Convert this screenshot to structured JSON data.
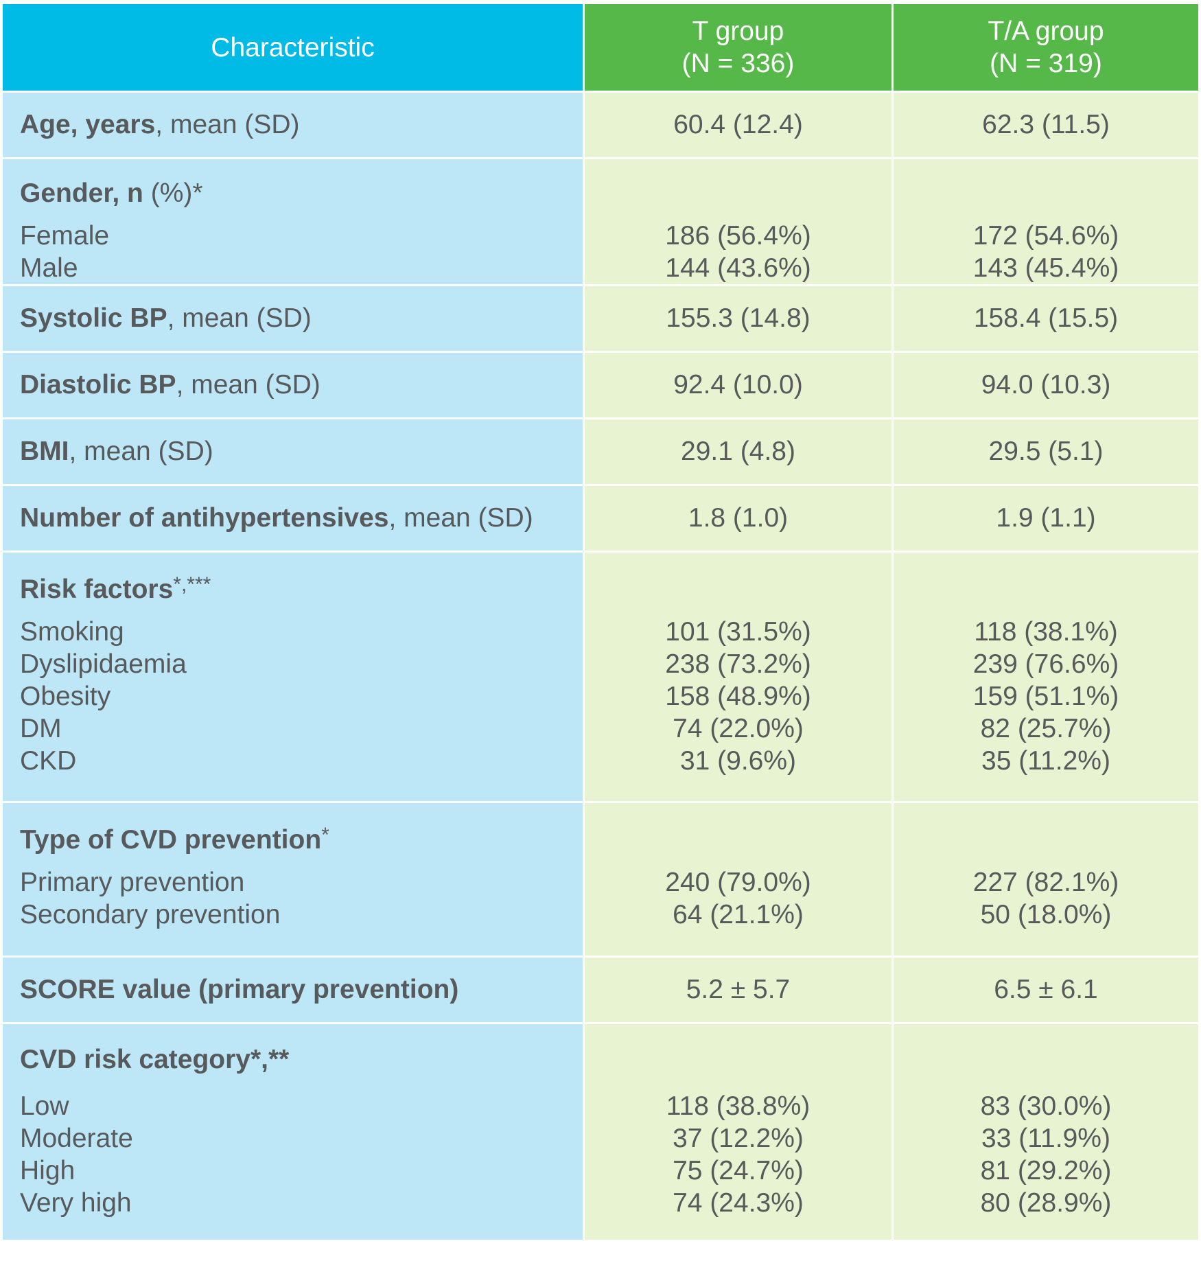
{
  "header": {
    "characteristic": "Characteristic",
    "t_group_line1": "T group",
    "t_group_line2": "(N = 336)",
    "ta_group_line1": "T/A group",
    "ta_group_line2": "(N = 319)"
  },
  "rows": {
    "age": {
      "label_bold": "Age, years",
      "label_rest": ", mean (SD)",
      "t": "60.4 (12.4)",
      "ta": "62.3 (11.5)"
    },
    "gender": {
      "title_bold": "Gender, n",
      "title_rest": " (%)*",
      "labels": [
        "Female",
        "Male"
      ],
      "t": [
        "186 (56.4%)",
        "144 (43.6%)"
      ],
      "ta": [
        "172 (54.6%)",
        "143 (45.4%)"
      ]
    },
    "systolic": {
      "label_bold": "Systolic BP",
      "label_rest": ", mean (SD)",
      "t": "155.3 (14.8)",
      "ta": "158.4 (15.5)"
    },
    "diastolic": {
      "label_bold": "Diastolic BP",
      "label_rest": ", mean (SD)",
      "t": "92.4 (10.0)",
      "ta": "94.0 (10.3)"
    },
    "bmi": {
      "label_bold": "BMI",
      "label_rest": ", mean (SD)",
      "t": "29.1 (4.8)",
      "ta": "29.5 (5.1)"
    },
    "antihyp": {
      "label_bold": "Number of antihypertensives",
      "label_rest": ", mean (SD)",
      "t": "1.8 (1.0)",
      "ta": "1.9 (1.1)"
    },
    "risk": {
      "title_bold": "Risk factors",
      "title_rest": "*,***",
      "labels": [
        "Smoking",
        "Dyslipidaemia",
        "Obesity",
        "DM",
        "CKD"
      ],
      "t": [
        "101 (31.5%)",
        "238 (73.2%)",
        "158 (48.9%)",
        "74 (22.0%)",
        "31 (9.6%)"
      ],
      "ta": [
        "118 (38.1%)",
        "239 (76.6%)",
        "159 (51.1%)",
        "82 (25.7%)",
        "35 (11.2%)"
      ]
    },
    "cvd_prev": {
      "title_bold": "Type of CVD prevention",
      "title_rest": "*",
      "labels": [
        "Primary prevention",
        "Secondary prevention"
      ],
      "t": [
        "240 (79.0%)",
        "64 (21.1%)"
      ],
      "ta": [
        "227 (82.1%)",
        "50 (18.0%)"
      ]
    },
    "score": {
      "label_bold": "SCORE value (primary prevention)",
      "label_rest": "",
      "t": "5.2 ± 5.7",
      "ta": "6.5 ± 6.1"
    },
    "cvd_risk": {
      "title_bold": "CVD risk category*,**",
      "title_rest": "",
      "labels": [
        "Low",
        "Moderate",
        "High",
        "Very high"
      ],
      "t": [
        "118 (38.8%)",
        "37 (12.2%)",
        "75 (24.7%)",
        "74 (24.3%)"
      ],
      "ta": [
        "83 (30.0%)",
        "33 (11.9%)",
        "81 (29.2%)",
        "80 (28.9%)"
      ]
    }
  }
}
